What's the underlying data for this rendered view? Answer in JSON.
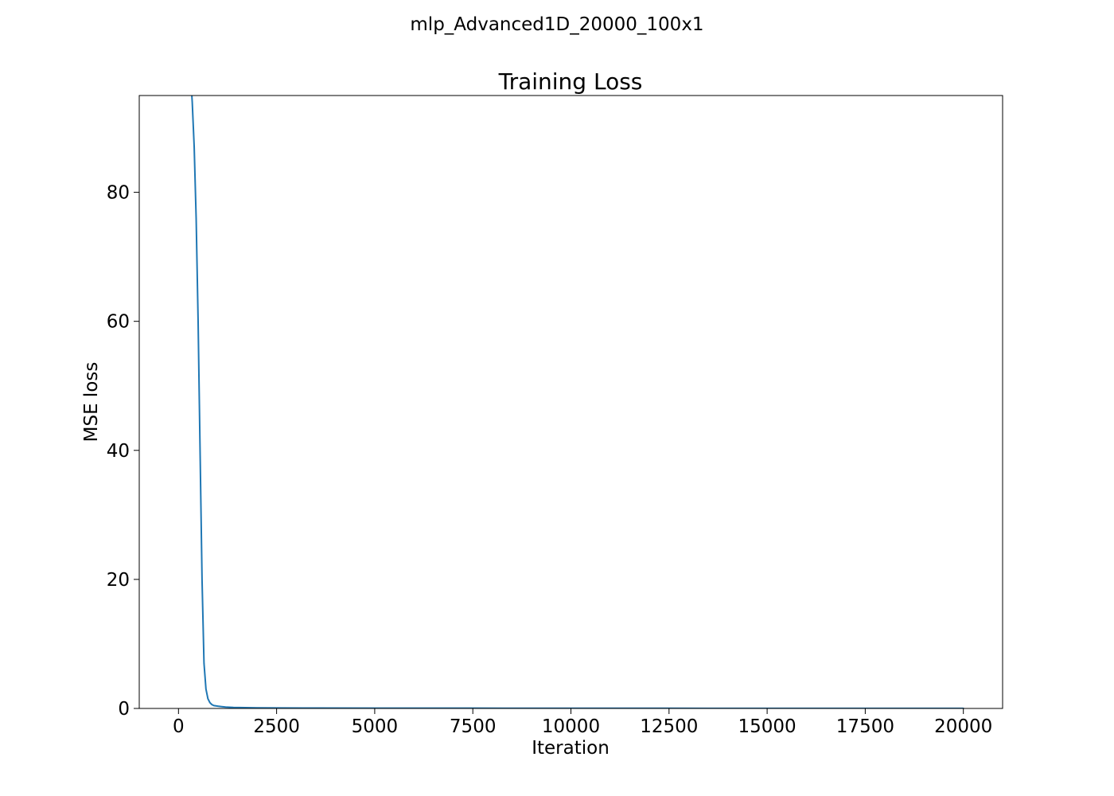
{
  "suptitle": "mlp_Advanced1D_20000_100x1",
  "chart_data": {
    "type": "line",
    "title": "Training Loss",
    "xlabel": "Iteration",
    "ylabel": "MSE loss",
    "xlim": [
      -1000,
      21000
    ],
    "ylim": [
      0,
      95
    ],
    "xticks": [
      0,
      2500,
      5000,
      7500,
      10000,
      12500,
      15000,
      17500,
      20000
    ],
    "yticks": [
      0,
      20,
      40,
      60,
      80
    ],
    "grid": false,
    "series": [
      {
        "color": "#1f77b4",
        "x": [
          300,
          350,
          400,
          450,
          500,
          550,
          600,
          650,
          700,
          750,
          800,
          850,
          900,
          1000,
          1100,
          1200,
          1400,
          1700,
          2000,
          2500,
          3500,
          5000,
          7500,
          10000,
          12500,
          15000,
          17500,
          20000
        ],
        "y": [
          99,
          94,
          87,
          76,
          60,
          40,
          20,
          7,
          3,
          1.5,
          0.9,
          0.6,
          0.45,
          0.35,
          0.28,
          0.22,
          0.16,
          0.12,
          0.1,
          0.08,
          0.06,
          0.05,
          0.04,
          0.03,
          0.025,
          0.02,
          0.02,
          0.02
        ]
      }
    ]
  }
}
